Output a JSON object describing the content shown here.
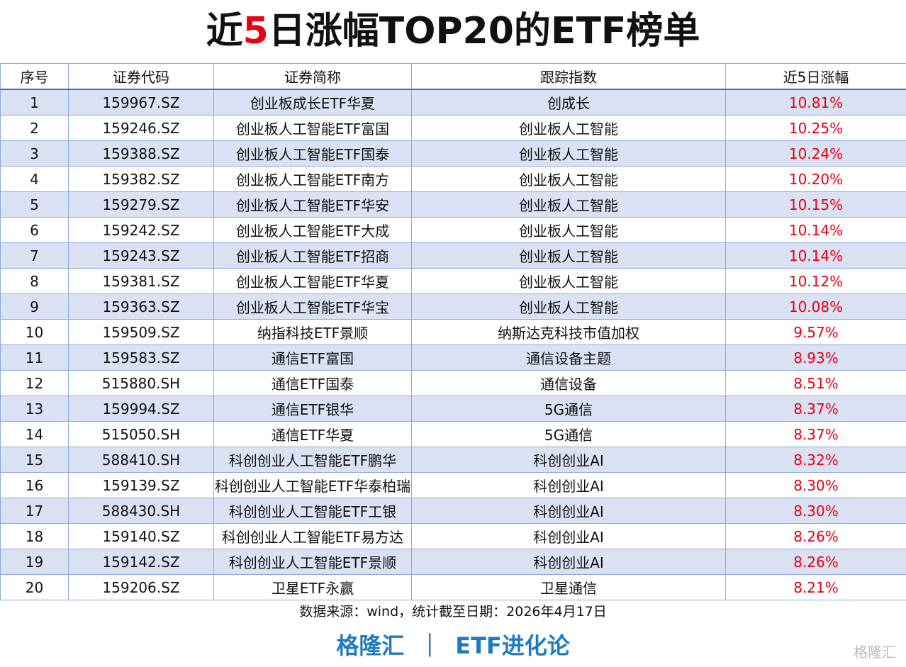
{
  "header": {
    "title_parts": [
      "近",
      "5",
      "日涨幅TOP20的ETF榜单"
    ]
  },
  "table": {
    "columns": [
      "序号",
      "证券代码",
      "证券简称",
      "跟踪指数",
      "近5日涨幅"
    ],
    "rows": [
      [
        "1",
        "159967.SZ",
        "创业板成长ETF华夏",
        "创成长",
        "10.81%"
      ],
      [
        "2",
        "159246.SZ",
        "创业板人工智能ETF富国",
        "创业板人工智能",
        "10.25%"
      ],
      [
        "3",
        "159388.SZ",
        "创业板人工智能ETF国泰",
        "创业板人工智能",
        "10.24%"
      ],
      [
        "4",
        "159382.SZ",
        "创业板人工智能ETF南方",
        "创业板人工智能",
        "10.20%"
      ],
      [
        "5",
        "159279.SZ",
        "创业板人工智能ETF华安",
        "创业板人工智能",
        "10.15%"
      ],
      [
        "6",
        "159242.SZ",
        "创业板人工智能ETF大成",
        "创业板人工智能",
        "10.14%"
      ],
      [
        "7",
        "159243.SZ",
        "创业板人工智能ETF招商",
        "创业板人工智能",
        "10.14%"
      ],
      [
        "8",
        "159381.SZ",
        "创业板人工智能ETF华夏",
        "创业板人工智能",
        "10.12%"
      ],
      [
        "9",
        "159363.SZ",
        "创业板人工智能ETF华宝",
        "创业板人工智能",
        "10.08%"
      ],
      [
        "10",
        "159509.SZ",
        "纳指科技ETF景顺",
        "纳斯达克科技市值加权",
        "9.57%"
      ],
      [
        "11",
        "159583.SZ",
        "通信ETF富国",
        "通信设备主题",
        "8.93%"
      ],
      [
        "12",
        "515880.SH",
        "通信ETF国泰",
        "通信设备",
        "8.51%"
      ],
      [
        "13",
        "159994.SZ",
        "通信ETF银华",
        "5G通信",
        "8.37%"
      ],
      [
        "14",
        "515050.SH",
        "通信ETF华夏",
        "5G通信",
        "8.37%"
      ],
      [
        "15",
        "588410.SH",
        "科创创业人工智能ETF鹏华",
        "科创创业AI",
        "8.32%"
      ],
      [
        "16",
        "159139.SZ",
        "科创创业人工智能ETF华泰柏瑞",
        "科创创业AI",
        "8.30%"
      ],
      [
        "17",
        "588430.SH",
        "科创创业人工智能ETF工银",
        "科创创业AI",
        "8.30%"
      ],
      [
        "18",
        "159140.SZ",
        "科创创业人工智能ETF易方达",
        "科创创业AI",
        "8.26%"
      ],
      [
        "19",
        "159142.SZ",
        "科创创业人工智能ETF景顺",
        "科创创业AI",
        "8.26%"
      ],
      [
        "20",
        "159206.SZ",
        "卫星ETF永赢",
        "卫星通信",
        "8.21%"
      ]
    ]
  },
  "footer": {
    "source": "数据来源：wind，统计截至日期：2026年4月17日",
    "brand": "格隆汇",
    "separator": "｜",
    "column": "ETF进化论",
    "watermark": "格隆汇"
  }
}
